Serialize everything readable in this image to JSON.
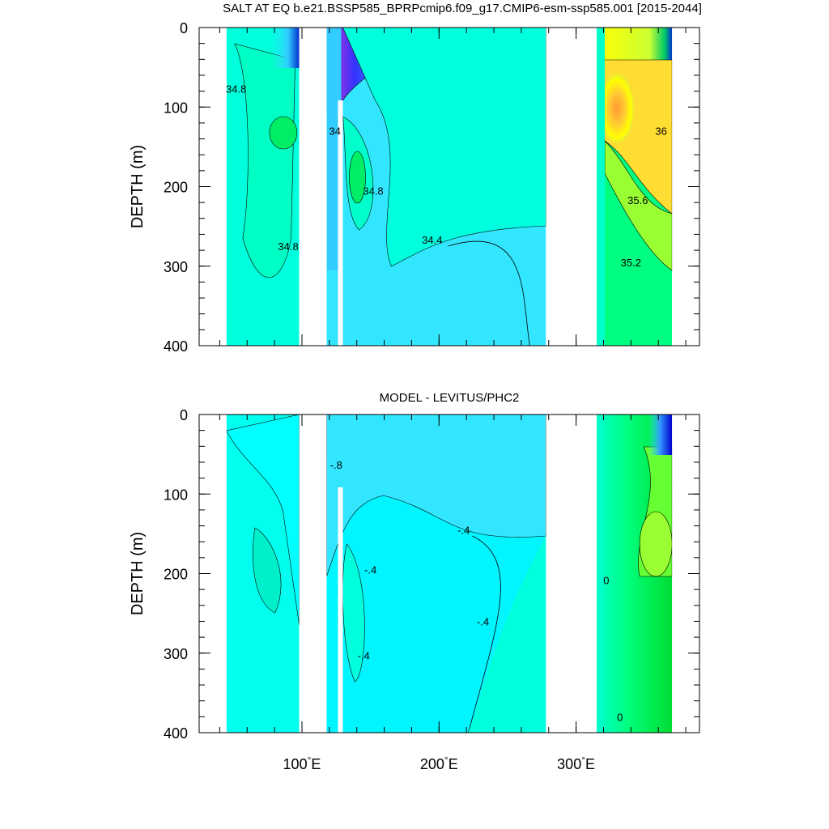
{
  "chart_data": [
    {
      "type": "heatmap",
      "title": "SALT AT EQ b.e21.BSSP585_BPRPcmip6.f09_g17.CMIP6-esm-ssp585.001 [2015-2044]",
      "ylabel": "DEPTH (m)",
      "xlabel": "",
      "xlim": [
        25,
        390
      ],
      "ylim": [
        400,
        0
      ],
      "x_ticks": [
        100,
        200,
        300
      ],
      "y_ticks": [
        0,
        100,
        200,
        300,
        400
      ],
      "y_tick_labels": [
        "0",
        "100",
        "200",
        "300",
        "400"
      ],
      "background_color": "#33e6ff",
      "regions": [
        {
          "name": "indian-ocean",
          "x_range": [
            45,
            98
          ],
          "color": "#00ffdd"
        },
        {
          "name": "pacific-ocean",
          "x_range": [
            118,
            278
          ],
          "color": "#33e6ff"
        },
        {
          "name": "atlantic-ocean",
          "x_range": [
            315,
            370
          ],
          "color": "#00ff80"
        }
      ],
      "contour_labels": [
        {
          "text": "34.8",
          "x": 52,
          "y": 82
        },
        {
          "text": "34.8",
          "x": 90,
          "y": 280
        },
        {
          "text": "34",
          "x": 124,
          "y": 135
        },
        {
          "text": "34.8",
          "x": 152,
          "y": 210
        },
        {
          "text": "34.4",
          "x": 195,
          "y": 272
        },
        {
          "text": "36",
          "x": 362,
          "y": 135
        },
        {
          "text": "35.6",
          "x": 345,
          "y": 222
        },
        {
          "text": "35.2",
          "x": 340,
          "y": 300
        }
      ]
    },
    {
      "type": "heatmap",
      "title": "MODEL - LEVITUS/PHC2",
      "ylabel": "DEPTH (m)",
      "xlabel": "",
      "xlim": [
        25,
        390
      ],
      "ylim": [
        400,
        0
      ],
      "x_ticks": [
        100,
        200,
        300
      ],
      "x_tick_labels": [
        "100",
        "200",
        "300"
      ],
      "x_tick_unit": "°E",
      "y_ticks": [
        0,
        100,
        200,
        300,
        400
      ],
      "y_tick_labels": [
        "0",
        "100",
        "200",
        "300",
        "400"
      ],
      "background_color": "#33e6ff",
      "regions": [
        {
          "name": "indian-ocean",
          "x_range": [
            45,
            98
          ],
          "color": "#00ffee"
        },
        {
          "name": "pacific-ocean",
          "x_range": [
            118,
            278
          ],
          "color": "#00f5ff"
        },
        {
          "name": "atlantic-ocean",
          "x_range": [
            315,
            370
          ],
          "color": "#00ff80"
        }
      ],
      "contour_labels": [
        {
          "text": "-.8",
          "x": 125,
          "y": 68
        },
        {
          "text": "-.4",
          "x": 150,
          "y": 200
        },
        {
          "text": "-.4",
          "x": 145,
          "y": 308
        },
        {
          "text": "-.4",
          "x": 218,
          "y": 150
        },
        {
          "text": "-.4",
          "x": 232,
          "y": 265
        },
        {
          "text": "0",
          "x": 322,
          "y": 213
        },
        {
          "text": "0",
          "x": 332,
          "y": 385
        }
      ]
    }
  ]
}
